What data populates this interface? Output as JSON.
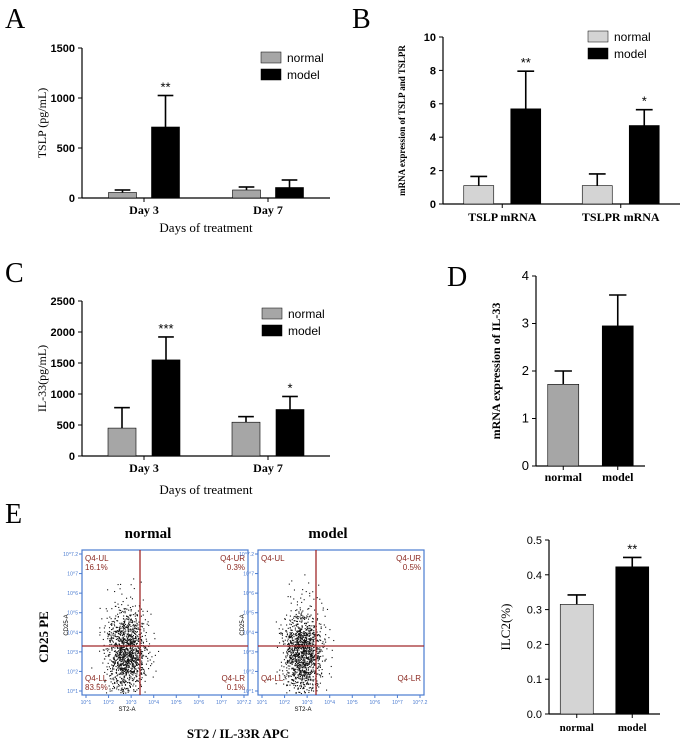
{
  "colors": {
    "normal_gray": "#a6a6a6",
    "normal_light": "#d4d4d4",
    "model": "#000000",
    "flow_axis": "#4a7bd0",
    "flow_gate": "#a0282a",
    "flow_text": "#8b2a22"
  },
  "chart_data": [
    {
      "panel": "A",
      "type": "bar",
      "title": "",
      "ylabel": "TSLP (pg/mL)",
      "xlabel": "Days of treatment",
      "ylim": [
        0,
        1500
      ],
      "yticks": [
        0,
        500,
        1000,
        1500
      ],
      "categories": [
        "Day 3",
        "Day 7"
      ],
      "series": [
        {
          "name": "normal",
          "values": [
            55,
            80
          ],
          "errors": [
            25,
            30
          ]
        },
        {
          "name": "model",
          "values": [
            710,
            105
          ],
          "errors": [
            315,
            75
          ]
        }
      ],
      "annotations": [
        {
          "category": "Day 3",
          "series": "model",
          "text": "**"
        }
      ],
      "legend": [
        "normal",
        "model"
      ],
      "legend_position": "top-right"
    },
    {
      "panel": "B",
      "type": "bar",
      "title": "",
      "ylabel": "mRNA expression of TSLP and TSLPR",
      "xlabel": "",
      "ylim": [
        0,
        10
      ],
      "yticks": [
        0,
        2,
        4,
        6,
        8,
        10
      ],
      "categories": [
        "TSLP mRNA",
        "TSLPR mRNA"
      ],
      "series": [
        {
          "name": "normal",
          "values": [
            1.1,
            1.1
          ],
          "errors": [
            0.55,
            0.7
          ]
        },
        {
          "name": "model",
          "values": [
            5.7,
            4.7
          ],
          "errors": [
            2.25,
            0.95
          ]
        }
      ],
      "annotations": [
        {
          "category": "TSLP mRNA",
          "series": "model",
          "text": "**"
        },
        {
          "category": "TSLPR mRNA",
          "series": "model",
          "text": "*"
        }
      ],
      "legend": [
        "normal",
        "model"
      ],
      "legend_position": "top-right"
    },
    {
      "panel": "C",
      "type": "bar",
      "title": "",
      "ylabel": "IL-33(pg/mL)",
      "xlabel": "Days of treatment",
      "ylim": [
        0,
        2500
      ],
      "yticks": [
        0,
        500,
        1000,
        1500,
        2000,
        2500
      ],
      "categories": [
        "Day 3",
        "Day 7"
      ],
      "series": [
        {
          "name": "normal",
          "values": [
            450,
            545
          ],
          "errors": [
            330,
            90
          ]
        },
        {
          "name": "model",
          "values": [
            1550,
            750
          ],
          "errors": [
            370,
            210
          ]
        }
      ],
      "annotations": [
        {
          "category": "Day 3",
          "series": "model",
          "text": "***"
        },
        {
          "category": "Day 7",
          "series": "model",
          "text": "*"
        }
      ],
      "legend": [
        "normal",
        "model"
      ],
      "legend_position": "top-right"
    },
    {
      "panel": "D",
      "type": "bar",
      "title": "",
      "ylabel": "mRNA expression of IL-33",
      "xlabel": "",
      "ylim": [
        0,
        4
      ],
      "yticks": [
        0,
        1,
        2,
        3,
        4
      ],
      "categories": [
        "normal",
        "model"
      ],
      "values": [
        1.72,
        2.95
      ],
      "errors": [
        0.28,
        0.65
      ],
      "bar_colors": [
        "#a6a6a6",
        "#000000"
      ]
    },
    {
      "panel": "E",
      "type": "bar",
      "title": "",
      "ylabel": "ILC2(%)",
      "xlabel": "",
      "ylim": [
        0.0,
        0.5
      ],
      "yticks": [
        "0.0",
        "0.1",
        "0.2",
        "0.3",
        "0.4",
        "0.5"
      ],
      "categories": [
        "normal",
        "model"
      ],
      "values": [
        0.315,
        0.423
      ],
      "errors": [
        0.027,
        0.027
      ],
      "bar_colors": [
        "#d4d4d4",
        "#000000"
      ],
      "annotations": [
        {
          "category": "model",
          "text": "**"
        }
      ]
    }
  ],
  "panel_labels": [
    "A",
    "B",
    "C",
    "D",
    "E"
  ],
  "flow": {
    "left_title": "normal",
    "right_title": "model",
    "y_title": "CD25 PE",
    "x_title": "ST2 / IL-33R APC",
    "axis_ylabel": "CD25-A",
    "axis_xlabel": "ST2-A",
    "yticks": [
      "10^7.2",
      "10^7",
      "10^6",
      "10^5",
      "10^4",
      "10^3",
      "10^2",
      "10^1"
    ],
    "xticks": [
      "10^1",
      "10^2",
      "10^3",
      "10^4",
      "10^5",
      "10^6",
      "10^7",
      "10^7.2"
    ],
    "normal": {
      "UL": "Q4-UL",
      "UL_pct": "16.1%",
      "UR": "Q4-UR",
      "UR_pct": "0.3%",
      "LL": "Q4-LL",
      "LL_pct": "83.5%",
      "LR": "Q4-LR",
      "LR_pct": "0.1%"
    },
    "model": {
      "UL": "Q4-UL",
      "UL_pct": "",
      "UR": "Q4-UR",
      "UR_pct": "0.5%",
      "LL": "Q4-LL",
      "LL_pct": "",
      "LR": "Q4-LR",
      "LR_pct": ""
    }
  }
}
